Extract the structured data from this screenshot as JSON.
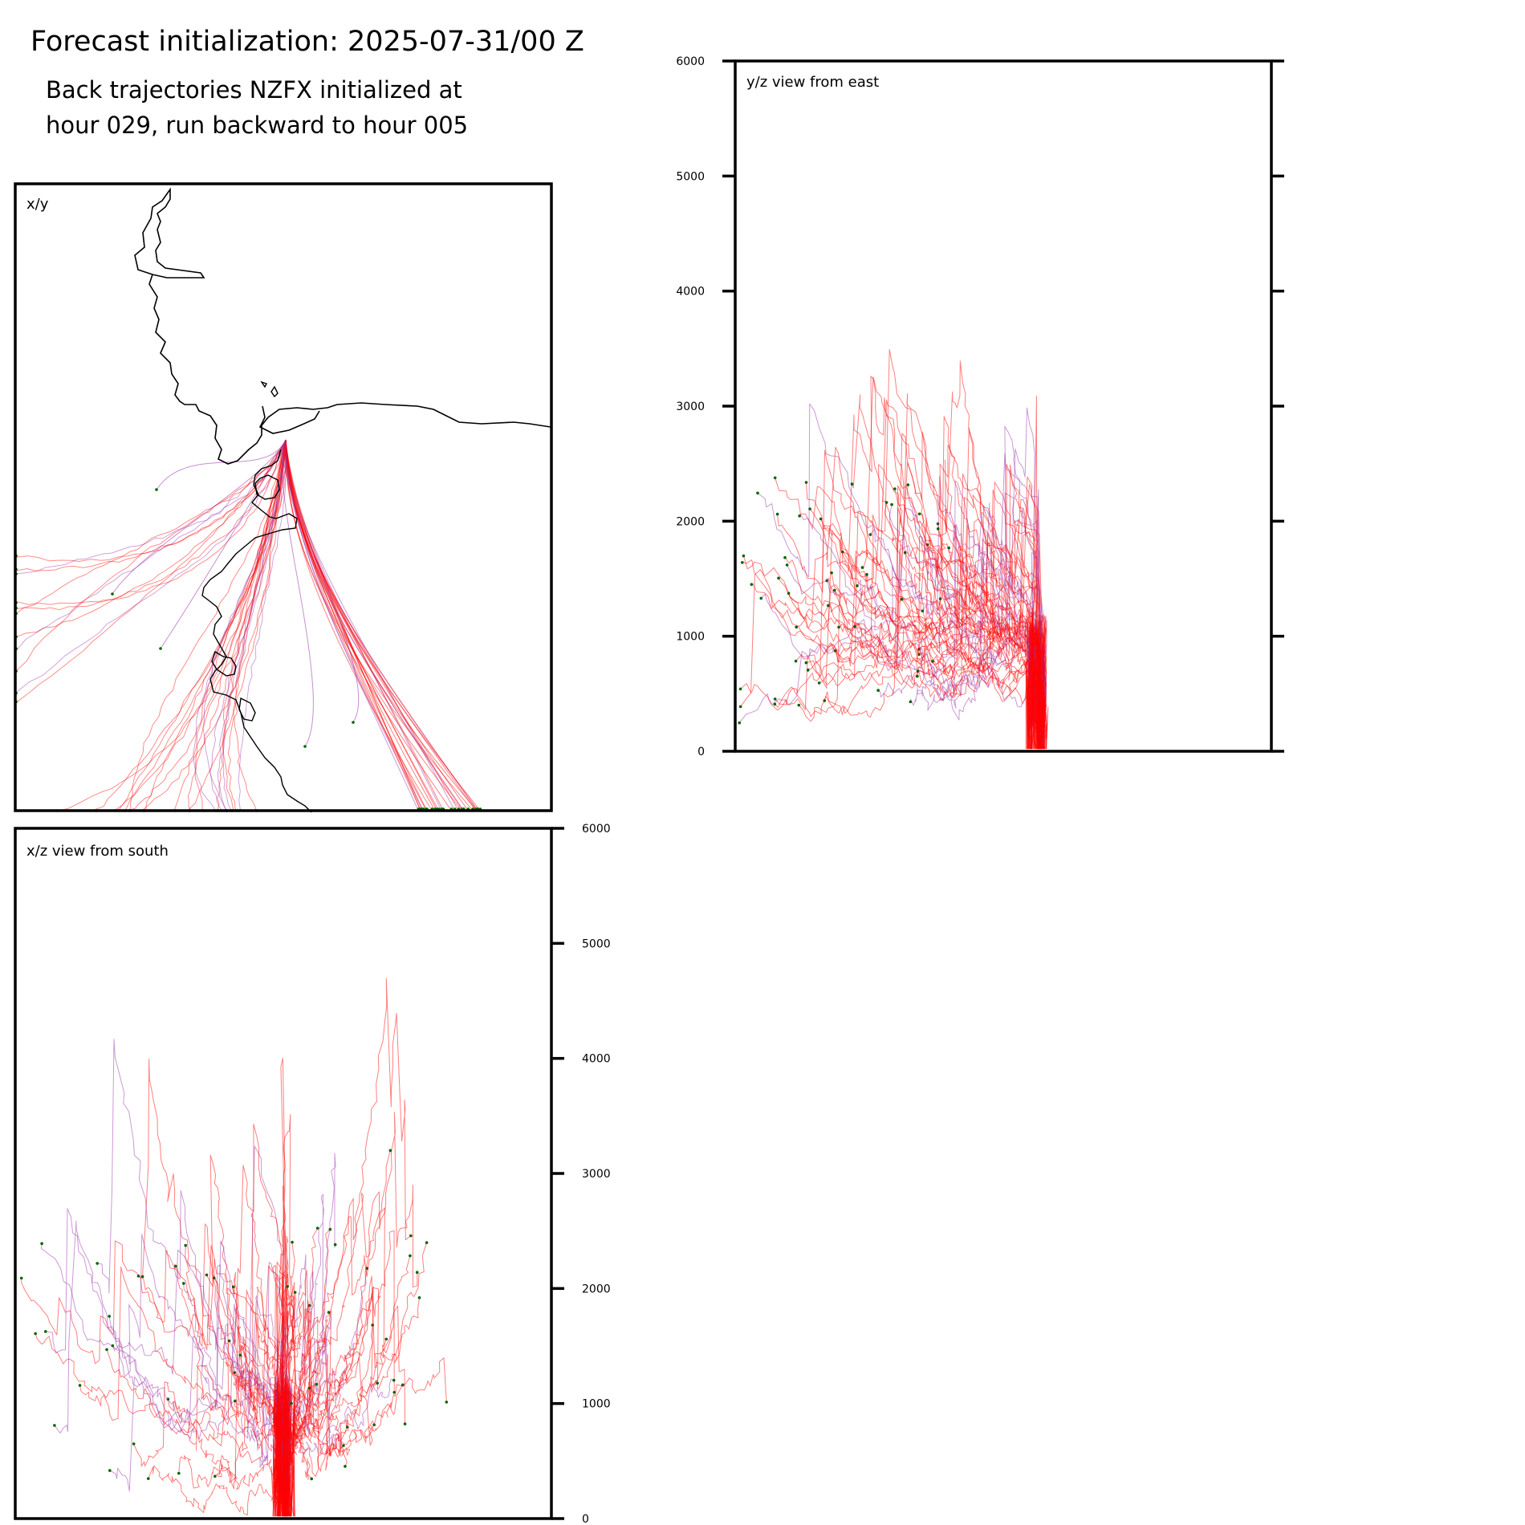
{
  "title": "Forecast initialization: 2025-07-31/00 Z",
  "subtitle_line1": "Back trajectories NZFX initialized at",
  "subtitle_line2": "hour 029, run backward to hour 005",
  "colors": {
    "trajectory_red": "#ff0000",
    "trajectory_purple": "#9933aa",
    "endpoint": "#006400",
    "coastline": "#000000",
    "frame": "#000000"
  },
  "chart_data": [
    {
      "type": "line",
      "panel": "x/y",
      "label": "x/y",
      "grid": false,
      "description_of_content": "map view with coastline and back-trajectory paths converging on NZFX",
      "source_point_label": "NZFX"
    },
    {
      "type": "line",
      "panel": "y/z",
      "label": "y/z view from east",
      "grid": false,
      "ylim": [
        0,
        6000
      ],
      "yticks": [
        0,
        1000,
        2000,
        3000,
        4000,
        5000,
        6000
      ],
      "ytick_labels": [
        "0",
        "1000",
        "2000",
        "3000",
        "4000",
        "5000",
        "6000"
      ],
      "ytick_side": "left"
    },
    {
      "type": "line",
      "panel": "x/z",
      "label": "x/z view from south",
      "grid": false,
      "ylim": [
        0,
        6000
      ],
      "yticks": [
        0,
        1000,
        2000,
        3000,
        4000,
        5000,
        6000
      ],
      "ytick_labels": [
        "0",
        "1000",
        "2000",
        "3000",
        "4000",
        "5000",
        "6000"
      ],
      "ytick_side": "right"
    }
  ]
}
